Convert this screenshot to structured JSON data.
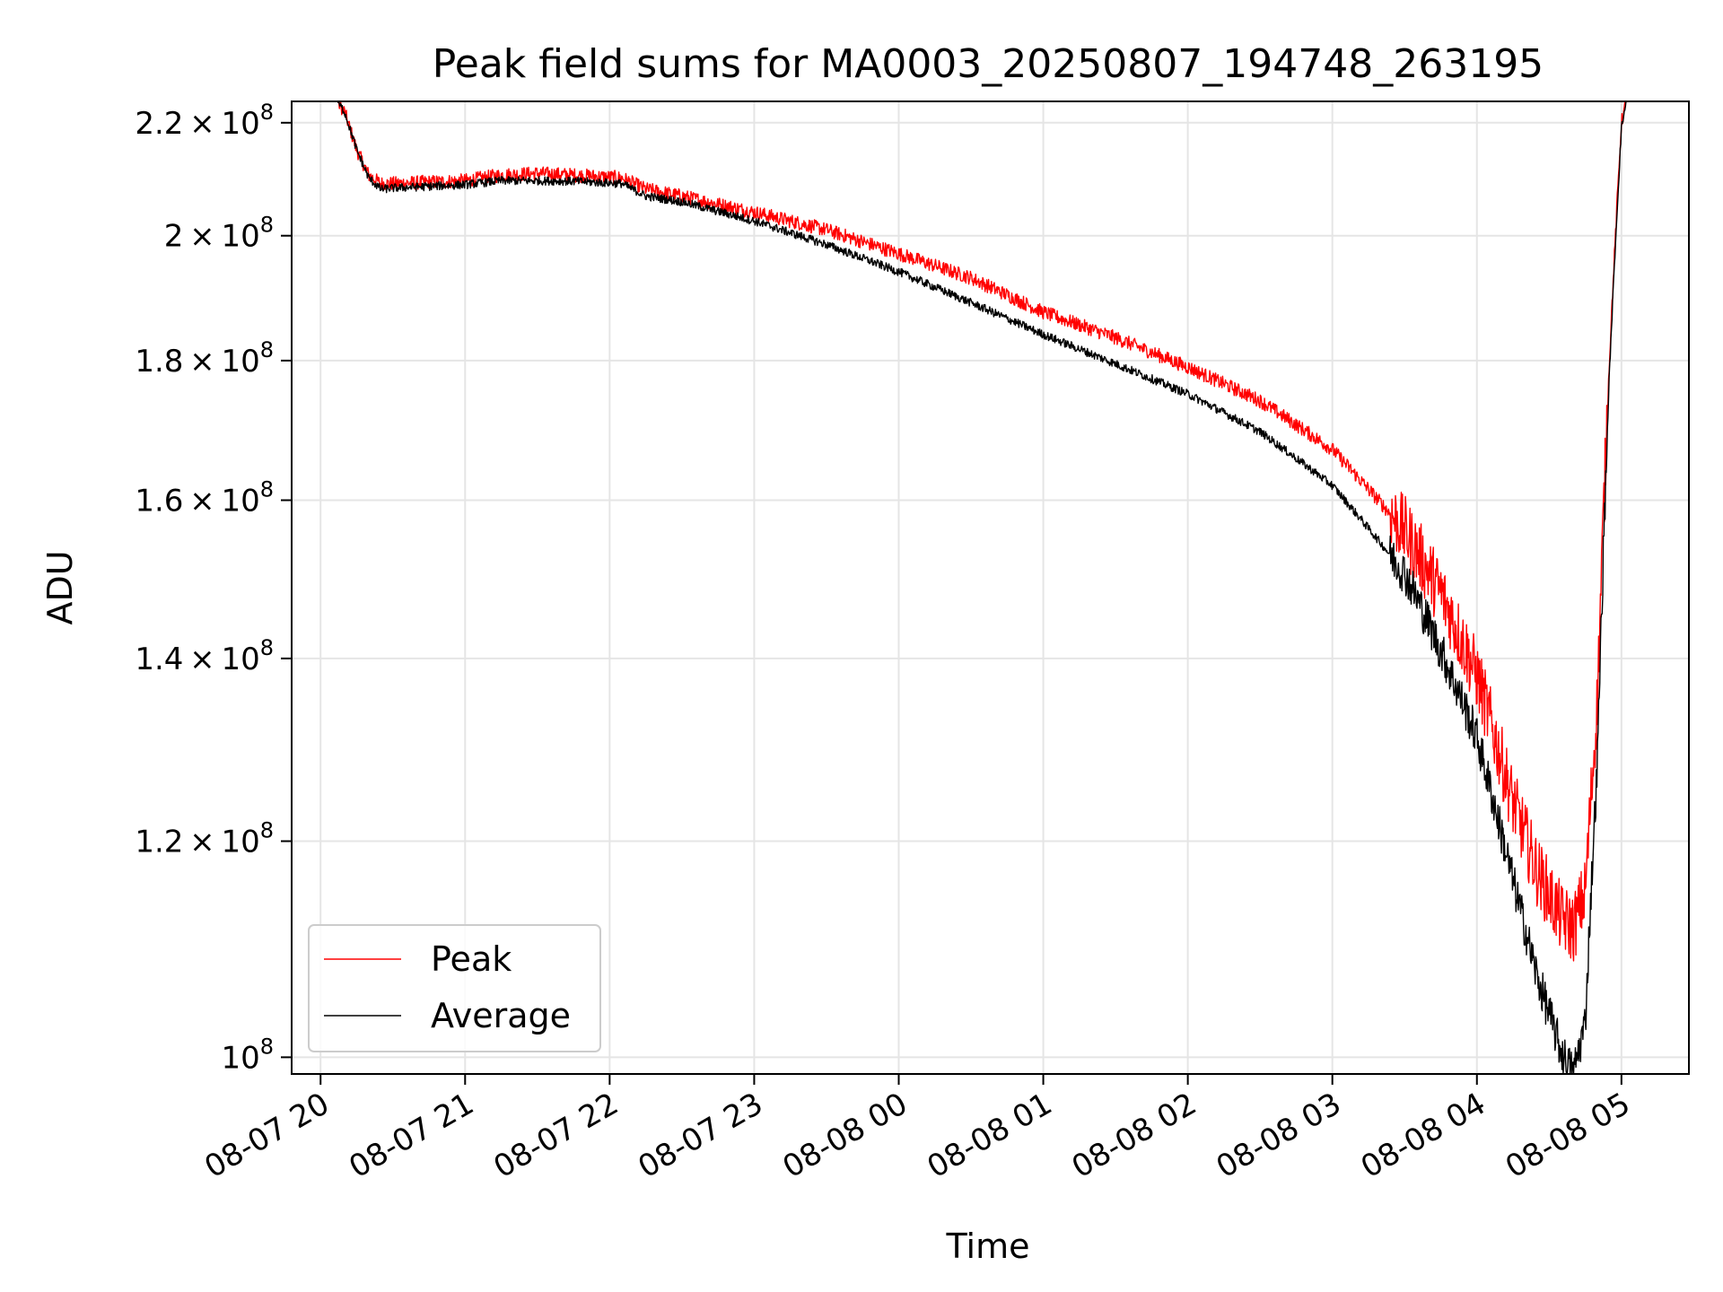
{
  "chart_data": {
    "type": "line",
    "title": "Peak field sums for MA0003_20250807_194748_263195",
    "xlabel": "Time",
    "ylabel": "ADU",
    "y_scale": "log",
    "grid": true,
    "legend_position": "lower-left",
    "x_unit": "hours",
    "xlim": [
      "08-07 19:48",
      "08-08 05:28"
    ],
    "ylim": [
      98600000,
      224000000
    ],
    "x_ticks": [
      {
        "value": "08-07 20:00",
        "label": "08-07 20"
      },
      {
        "value": "08-07 21:00",
        "label": "08-07 21"
      },
      {
        "value": "08-07 22:00",
        "label": "08-07 22"
      },
      {
        "value": "08-07 23:00",
        "label": "08-07 23"
      },
      {
        "value": "08-08 00:00",
        "label": "08-08 00"
      },
      {
        "value": "08-08 01:00",
        "label": "08-08 01"
      },
      {
        "value": "08-08 02:00",
        "label": "08-08 02"
      },
      {
        "value": "08-08 03:00",
        "label": "08-08 03"
      },
      {
        "value": "08-08 04:00",
        "label": "08-08 04"
      },
      {
        "value": "08-08 05:00",
        "label": "08-08 05"
      }
    ],
    "y_ticks": [
      {
        "value": 100000000,
        "mantissa": "",
        "label_exp": "8"
      },
      {
        "value": 120000000,
        "mantissa": "1.2",
        "label_exp": "8"
      },
      {
        "value": 140000000,
        "mantissa": "1.4",
        "label_exp": "8"
      },
      {
        "value": 160000000,
        "mantissa": "1.6",
        "label_exp": "8"
      },
      {
        "value": 180000000,
        "mantissa": "1.8",
        "label_exp": "8"
      },
      {
        "value": 200000000,
        "mantissa": "2",
        "label_exp": "8"
      },
      {
        "value": 220000000,
        "mantissa": "2.2",
        "label_exp": "8"
      }
    ],
    "series": [
      {
        "name": "Peak",
        "color": "#ff0000",
        "noise": 0.01,
        "points": [
          [
            "08-07 19:48",
            224000000
          ],
          [
            "08-07 20:07",
            224000000
          ],
          [
            "08-07 20:10",
            222000000
          ],
          [
            "08-07 20:15",
            215000000
          ],
          [
            "08-07 20:20",
            210500000
          ],
          [
            "08-07 20:25",
            209000000
          ],
          [
            "08-07 20:30",
            209000000
          ],
          [
            "08-07 21:00",
            209500000
          ],
          [
            "08-07 21:15",
            210500000
          ],
          [
            "08-07 21:30",
            210800000
          ],
          [
            "08-07 21:45",
            210500000
          ],
          [
            "08-07 22:05",
            210000000
          ],
          [
            "08-07 22:15",
            208000000
          ],
          [
            "08-07 22:30",
            206800000
          ],
          [
            "08-07 23:00",
            204000000
          ],
          [
            "08-07 23:30",
            201000000
          ],
          [
            "08-08 00:00",
            197000000
          ],
          [
            "08-08 00:30",
            193000000
          ],
          [
            "08-08 01:00",
            187500000
          ],
          [
            "08-08 01:30",
            183500000
          ],
          [
            "08-08 02:00",
            179000000
          ],
          [
            "08-08 02:30",
            174000000
          ],
          [
            "08-08 03:00",
            167000000
          ],
          [
            "08-08 03:30",
            156000000
          ],
          [
            "08-08 03:45",
            148000000
          ],
          [
            "08-08 04:00",
            138000000
          ],
          [
            "08-08 04:15",
            124000000
          ],
          [
            "08-08 04:25",
            117000000
          ],
          [
            "08-08 04:35",
            112500000
          ],
          [
            "08-08 04:40",
            111500000
          ],
          [
            "08-08 04:45",
            115000000
          ],
          [
            "08-08 04:50",
            135000000
          ],
          [
            "08-08 04:55",
            180000000
          ],
          [
            "08-08 05:00",
            220000000
          ],
          [
            "08-08 05:02",
            224000000
          ],
          [
            "08-08 05:28",
            224000000
          ]
        ]
      },
      {
        "name": "Average",
        "color": "#000000",
        "noise": 0.006,
        "points": [
          [
            "08-07 19:48",
            224000000
          ],
          [
            "08-07 20:07",
            224000000
          ],
          [
            "08-07 20:10",
            222000000
          ],
          [
            "08-07 20:15",
            215000000
          ],
          [
            "08-07 20:20",
            210000000
          ],
          [
            "08-07 20:25",
            208000000
          ],
          [
            "08-07 20:30",
            208200000
          ],
          [
            "08-07 21:00",
            208800000
          ],
          [
            "08-07 21:15",
            209500000
          ],
          [
            "08-07 21:30",
            209500000
          ],
          [
            "08-07 21:45",
            209400000
          ],
          [
            "08-07 22:05",
            209000000
          ],
          [
            "08-07 22:15",
            206800000
          ],
          [
            "08-07 22:30",
            205800000
          ],
          [
            "08-07 23:00",
            202500000
          ],
          [
            "08-07 23:30",
            198500000
          ],
          [
            "08-08 00:00",
            194000000
          ],
          [
            "08-08 00:30",
            189000000
          ],
          [
            "08-08 01:00",
            184000000
          ],
          [
            "08-08 01:30",
            179500000
          ],
          [
            "08-08 02:00",
            175000000
          ],
          [
            "08-08 02:30",
            169500000
          ],
          [
            "08-08 03:00",
            162000000
          ],
          [
            "08-08 03:30",
            150500000
          ],
          [
            "08-08 03:45",
            141000000
          ],
          [
            "08-08 04:00",
            131000000
          ],
          [
            "08-08 04:15",
            116000000
          ],
          [
            "08-08 04:25",
            107000000
          ],
          [
            "08-08 04:35",
            100500000
          ],
          [
            "08-08 04:40",
            98600000
          ],
          [
            "08-08 04:45",
            103000000
          ],
          [
            "08-08 04:50",
            128000000
          ],
          [
            "08-08 04:55",
            178000000
          ],
          [
            "08-08 05:00",
            219000000
          ],
          [
            "08-08 05:02",
            224000000
          ],
          [
            "08-08 05:28",
            224000000
          ]
        ]
      }
    ]
  }
}
